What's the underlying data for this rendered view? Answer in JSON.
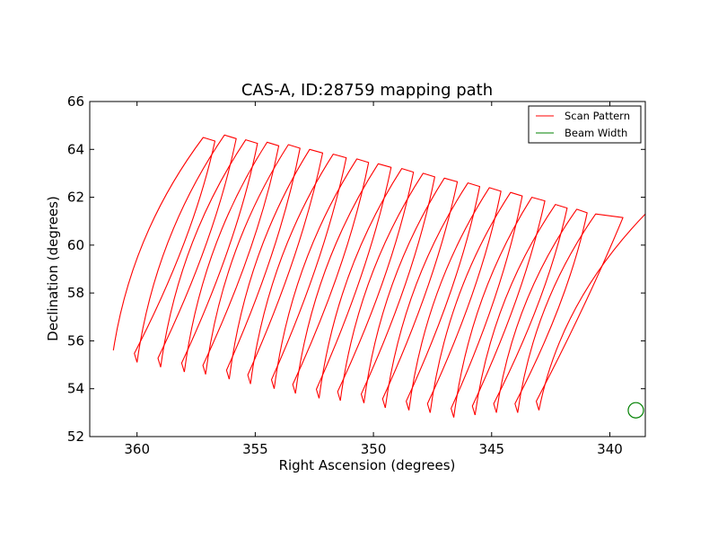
{
  "chart_data": {
    "type": "line",
    "title": "CAS-A, ID:28759 mapping path",
    "xlabel": "Right Ascension (degrees)",
    "ylabel": "Declination (degrees)",
    "xlim": [
      362,
      338.5
    ],
    "ylim": [
      52,
      66
    ],
    "xticks": [
      360,
      355,
      350,
      345,
      340
    ],
    "yticks": [
      52,
      54,
      56,
      58,
      60,
      62,
      64,
      66
    ],
    "grid": false,
    "legend": {
      "placement": "top-right",
      "entries": [
        {
          "label": "Scan Pattern",
          "color": "#ff0000"
        },
        {
          "label": "Beam Width",
          "color": "#008000"
        }
      ]
    },
    "series": [
      {
        "name": "Scan Pattern",
        "color": "#ff0000",
        "sweeps": [
          {
            "start": [
              361.0,
              55.6
            ],
            "end": [
              357.2,
              64.5
            ]
          },
          {
            "start": [
              360.0,
              55.1
            ],
            "end": [
              356.3,
              64.6
            ]
          },
          {
            "start": [
              359.0,
              54.9
            ],
            "end": [
              355.4,
              64.4
            ]
          },
          {
            "start": [
              358.0,
              54.7
            ],
            "end": [
              354.5,
              64.3
            ]
          },
          {
            "start": [
              357.1,
              54.6
            ],
            "end": [
              353.6,
              64.2
            ]
          },
          {
            "start": [
              356.1,
              54.4
            ],
            "end": [
              352.7,
              64.0
            ]
          },
          {
            "start": [
              355.2,
              54.2
            ],
            "end": [
              351.7,
              63.8
            ]
          },
          {
            "start": [
              354.2,
              54.0
            ],
            "end": [
              350.7,
              63.6
            ]
          },
          {
            "start": [
              353.3,
              53.8
            ],
            "end": [
              349.8,
              63.4
            ]
          },
          {
            "start": [
              352.3,
              53.6
            ],
            "end": [
              348.8,
              63.2
            ]
          },
          {
            "start": [
              351.4,
              53.5
            ],
            "end": [
              347.9,
              63.0
            ]
          },
          {
            "start": [
              350.4,
              53.4
            ],
            "end": [
              347.0,
              62.8
            ]
          },
          {
            "start": [
              349.5,
              53.2
            ],
            "end": [
              346.0,
              62.6
            ]
          },
          {
            "start": [
              348.5,
              53.1
            ],
            "end": [
              345.1,
              62.4
            ]
          },
          {
            "start": [
              347.6,
              53.0
            ],
            "end": [
              344.2,
              62.2
            ]
          },
          {
            "start": [
              346.6,
              52.8
            ],
            "end": [
              343.3,
              62.0
            ]
          },
          {
            "start": [
              345.7,
              52.9
            ],
            "end": [
              342.3,
              61.7
            ]
          },
          {
            "start": [
              344.8,
              53.0
            ],
            "end": [
              341.4,
              61.5
            ]
          },
          {
            "start": [
              343.9,
              53.0
            ],
            "end": [
              340.6,
              61.3
            ]
          },
          {
            "start": [
              343.0,
              53.1
            ],
            "end": [
              338.5,
              61.3
            ]
          }
        ]
      },
      {
        "name": "Beam Width",
        "color": "#008000",
        "center": [
          338.9,
          53.1
        ],
        "radius_deg": 0.32
      }
    ]
  }
}
